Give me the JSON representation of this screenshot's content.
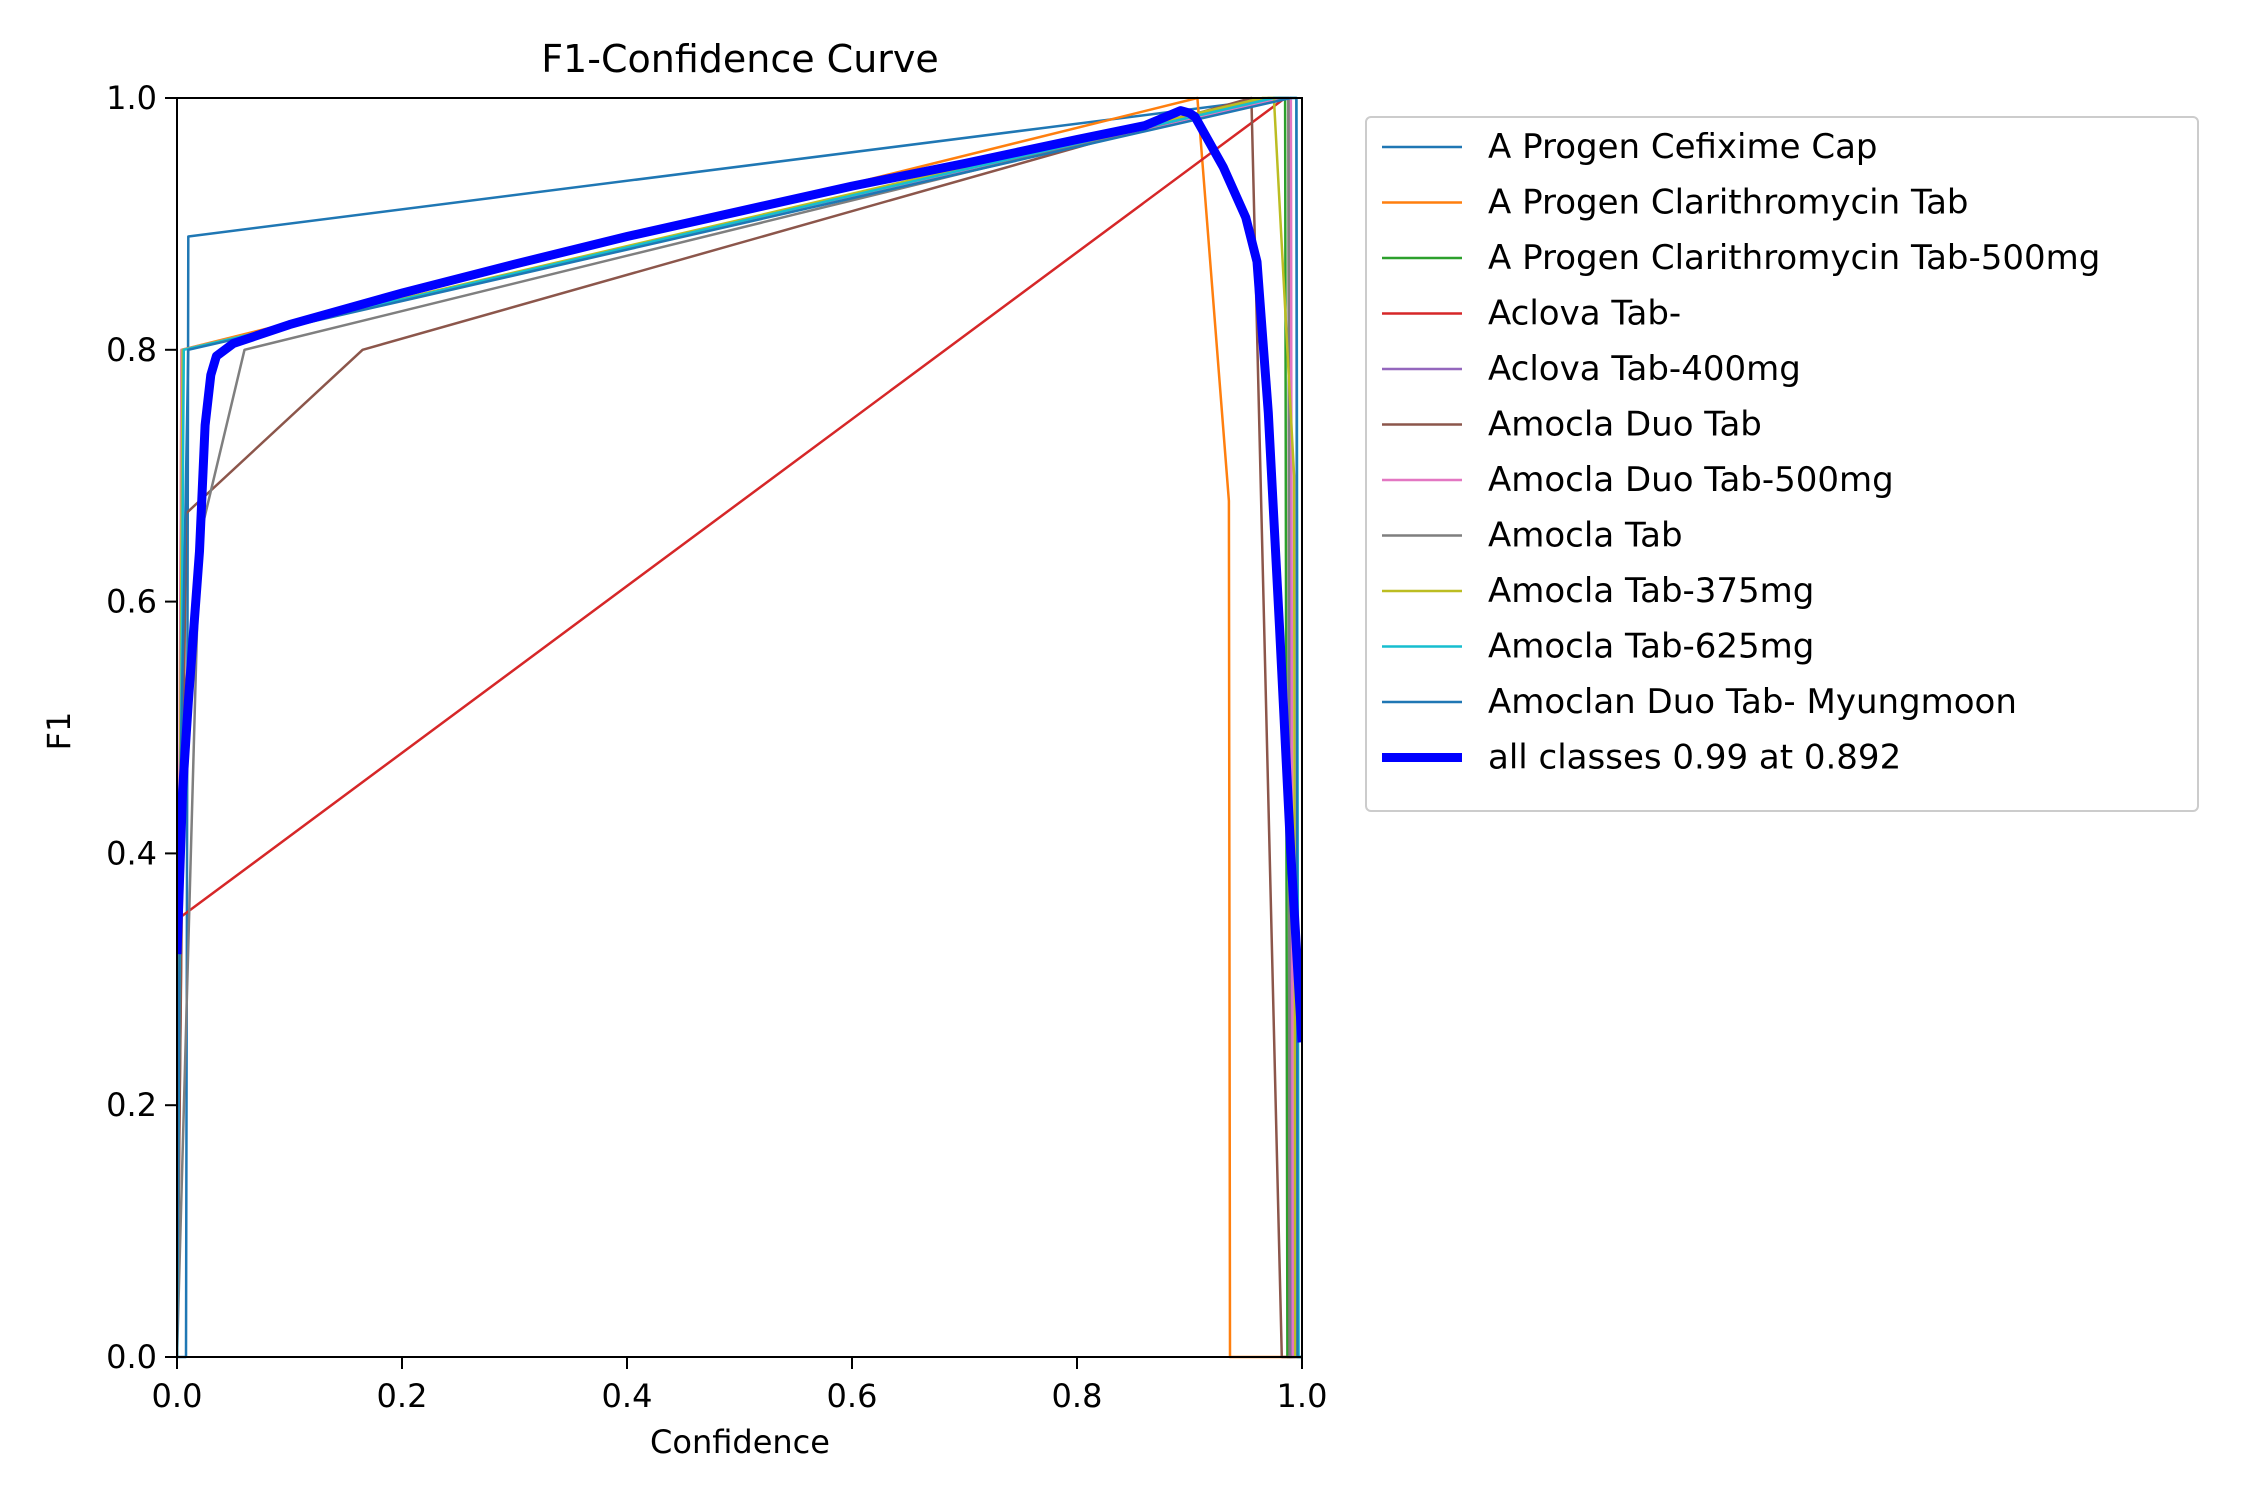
{
  "chart_data": {
    "type": "line",
    "title": "F1-Confidence Curve",
    "xlabel": "Confidence",
    "ylabel": "F1",
    "xlim": [
      0.0,
      1.0
    ],
    "ylim": [
      0.0,
      1.0
    ],
    "xticks": [
      "0.0",
      "0.2",
      "0.4",
      "0.6",
      "0.8",
      "1.0"
    ],
    "yticks": [
      "0.0",
      "0.2",
      "0.4",
      "0.6",
      "0.8",
      "1.0"
    ],
    "grid": false,
    "legend_position": "outside-right-top",
    "series": [
      {
        "name": "A Progen Cefixime Cap",
        "color": "#1f77b4",
        "x": [
          0.0,
          0.008,
          0.01,
          0.98,
          0.988,
          0.99,
          1.0
        ],
        "y": [
          0.0,
          0.0,
          0.89,
          1.0,
          1.0,
          0.0,
          0.0
        ]
      },
      {
        "name": "A Progen Clarithromycin Tab",
        "color": "#ff7f0e",
        "x": [
          0.0,
          0.004,
          0.907,
          0.935,
          0.936,
          1.0
        ],
        "y": [
          0.0,
          0.8,
          1.0,
          0.68,
          0.0,
          0.0
        ]
      },
      {
        "name": "A Progen Clarithromycin Tab-500mg",
        "color": "#2ca02c",
        "x": [
          0.0,
          0.005,
          0.975,
          0.985,
          0.987,
          1.0
        ],
        "y": [
          0.0,
          0.8,
          1.0,
          1.0,
          0.0,
          0.0
        ]
      },
      {
        "name": "Aclova Tab-",
        "color": "#d62728",
        "x": [
          0.0,
          0.004,
          0.985,
          0.988,
          0.989,
          1.0
        ],
        "y": [
          0.0,
          0.35,
          1.0,
          1.0,
          0.0,
          0.0
        ]
      },
      {
        "name": "Aclova Tab-400mg",
        "color": "#9467bd",
        "x": [
          0.0,
          0.005,
          0.985,
          0.99,
          0.991,
          1.0
        ],
        "y": [
          0.0,
          0.8,
          1.0,
          1.0,
          0.0,
          0.0
        ]
      },
      {
        "name": "Amocla Duo Tab",
        "color": "#8c564b",
        "x": [
          0.0,
          0.008,
          0.165,
          0.955,
          0.982,
          0.983,
          1.0
        ],
        "y": [
          0.0,
          0.67,
          0.8,
          1.0,
          0.0,
          0.0,
          0.0
        ]
      },
      {
        "name": "Amocla Duo Tab-500mg",
        "color": "#e377c2",
        "x": [
          0.0,
          0.004,
          0.98,
          0.99,
          0.992,
          1.0
        ],
        "y": [
          0.0,
          0.8,
          1.0,
          1.0,
          0.0,
          0.0
        ]
      },
      {
        "name": "Amocla Tab",
        "color": "#7f7f7f",
        "x": [
          0.0,
          0.02,
          0.06,
          0.97,
          0.988,
          0.989,
          1.0
        ],
        "y": [
          0.0,
          0.65,
          0.8,
          1.0,
          1.0,
          0.0,
          0.0
        ]
      },
      {
        "name": "Amocla Tab-375mg",
        "color": "#bcbd22",
        "x": [
          0.0,
          0.005,
          0.965,
          0.975,
          0.993,
          0.994,
          1.0
        ],
        "y": [
          0.0,
          0.8,
          1.0,
          1.0,
          0.7,
          0.0,
          0.0
        ]
      },
      {
        "name": "Amocla Tab-625mg",
        "color": "#17becf",
        "x": [
          0.0,
          0.006,
          0.975,
          0.995,
          0.997,
          1.0
        ],
        "y": [
          0.0,
          0.8,
          1.0,
          1.0,
          0.0,
          0.0
        ]
      },
      {
        "name": "Amoclan Duo Tab- Myungmoon",
        "color": "#1f77b4",
        "x": [
          0.0,
          0.003,
          0.01,
          0.99,
          0.995,
          0.996,
          1.0
        ],
        "y": [
          0.0,
          0.45,
          0.8,
          1.0,
          1.0,
          0.0,
          0.0
        ]
      },
      {
        "name": "all classes 0.99 at 0.892",
        "color": "#0000ff",
        "thick": true,
        "x": [
          0.0,
          0.005,
          0.01,
          0.015,
          0.02,
          0.025,
          0.03,
          0.035,
          0.05,
          0.1,
          0.2,
          0.3,
          0.4,
          0.5,
          0.6,
          0.7,
          0.8,
          0.86,
          0.892,
          0.9,
          0.905,
          0.93,
          0.95,
          0.96,
          0.97,
          0.98,
          0.99,
          1.0
        ],
        "y": [
          0.32,
          0.45,
          0.52,
          0.58,
          0.64,
          0.74,
          0.78,
          0.795,
          0.805,
          0.82,
          0.845,
          0.868,
          0.89,
          0.91,
          0.93,
          0.948,
          0.967,
          0.978,
          0.99,
          0.988,
          0.985,
          0.945,
          0.905,
          0.87,
          0.75,
          0.58,
          0.4,
          0.25
        ]
      }
    ]
  }
}
